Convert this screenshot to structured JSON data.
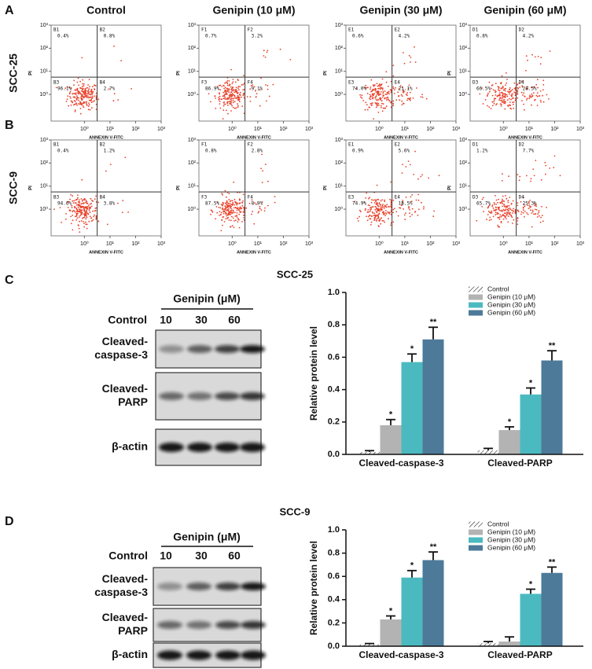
{
  "flow_cytometry": {
    "column_titles": [
      "Control",
      "Genipin (10 μM)",
      "Genipin (30 μM)",
      "Genipin (60 μM)"
    ],
    "x_label": "ANNEXIN V-FITC",
    "y_label": "PI",
    "log_scale": true,
    "xlim": [
      0.05,
      1000
    ],
    "ylim": [
      0.07,
      1000
    ],
    "xticks": [
      {
        "value": 1,
        "label": "10⁰"
      },
      {
        "value": 10,
        "label": "10¹"
      },
      {
        "value": 100,
        "label": "10²"
      },
      {
        "value": 1000,
        "label": "10³"
      }
    ],
    "yticks": [
      {
        "value": 1,
        "label": "10⁰"
      },
      {
        "value": 10,
        "label": "10¹"
      },
      {
        "value": 100,
        "label": "10²"
      },
      {
        "value": 1000,
        "label": "10³"
      }
    ],
    "dot_color": "#e8412a",
    "rows": [
      {
        "label": "A",
        "cell_line": "SCC-25",
        "plots": [
          {
            "quadrants": [
              "B1",
              "B2",
              "B3",
              "B4"
            ],
            "values": [
              0.4,
              0.8,
              96.1,
              2.7
            ],
            "value_labels": [
              "0.4%",
              "0.8%",
              "96.1%",
              "2.7%"
            ]
          },
          {
            "quadrants": [
              "F1",
              "F2",
              "F3",
              "F4"
            ],
            "values": [
              0.7,
              3.2,
              86.9,
              9.1
            ],
            "value_labels": [
              "0.7%",
              "3.2%",
              "86.9%",
              "9.1%"
            ]
          },
          {
            "quadrants": [
              "E1",
              "E2",
              "E3",
              "E4"
            ],
            "values": [
              0.6,
              4.2,
              74.0,
              21.1
            ],
            "value_labels": [
              "0.6%",
              "4.2%",
              "74.0%",
              "21.1%"
            ]
          },
          {
            "quadrants": [
              "D1",
              "D2",
              "D3",
              "D4"
            ],
            "values": [
              0.8,
              4.2,
              66.5,
              28.5
            ],
            "value_labels": [
              "0.8%",
              "4.2%",
              "66.5%",
              "28.5%"
            ]
          }
        ]
      },
      {
        "label": "B",
        "cell_line": "SCC-9",
        "plots": [
          {
            "quadrants": [
              "B1",
              "B2",
              "B3",
              "B4"
            ],
            "values": [
              0.4,
              1.2,
              94.6,
              3.8
            ],
            "value_labels": [
              "0.4%",
              "1.2%",
              "94.6%",
              "3.8%"
            ]
          },
          {
            "quadrants": [
              "F1",
              "F2",
              "F3",
              "F4"
            ],
            "values": [
              0.8,
              2.8,
              87.5,
              8.9
            ],
            "value_labels": [
              "0.8%",
              "2.8%",
              "87.5%",
              "8.9%"
            ]
          },
          {
            "quadrants": [
              "E1",
              "E2",
              "E3",
              "E4"
            ],
            "values": [
              0.9,
              5.6,
              74.9,
              18.5
            ],
            "value_labels": [
              "0.9%",
              "5.6%",
              "74.9%",
              "18.5%"
            ]
          },
          {
            "quadrants": [
              "D1",
              "D2",
              "D3",
              "D4"
            ],
            "values": [
              1.2,
              7.7,
              65.7,
              25.3
            ],
            "value_labels": [
              "1.2%",
              "7.7%",
              "65.7%",
              "25.3%"
            ]
          }
        ]
      }
    ]
  },
  "blots": [
    {
      "treatment_label": "Genipin (μM)",
      "lanes": [
        "Control",
        "10",
        "30",
        "60"
      ],
      "rows": [
        [
          "Cleaved-",
          "caspase-3"
        ],
        [
          "Cleaved-",
          "PARP"
        ],
        [
          "β-actin"
        ]
      ]
    },
    {
      "treatment_label": "Genipin (μM)",
      "lanes": [
        "Control",
        "10",
        "30",
        "60"
      ],
      "rows": [
        [
          "Cleaved-",
          "caspase-3"
        ],
        [
          "Cleaved-",
          "PARP"
        ],
        [
          "β-actin"
        ]
      ]
    }
  ],
  "chart_data": [
    {
      "type": "bar",
      "panel_label": "C",
      "title": "SCC-25",
      "y_label": "Relative protein level",
      "categories": [
        "Cleaved-caspase-3",
        "Cleaved-PARP"
      ],
      "ylim": [
        0,
        1
      ],
      "yticks": [
        {
          "value": 0,
          "label": "0.0"
        },
        0.2,
        0.4,
        0.6,
        0.8,
        {
          "value": 1,
          "label": "1.0"
        }
      ],
      "legend": "upper right",
      "series": [
        {
          "name": "Control",
          "color": "#ffffff",
          "pattern": "hatch",
          "values": [
            0.015,
            0.025
          ],
          "errors": [
            0.008,
            0.012
          ],
          "significance": [
            null,
            null
          ]
        },
        {
          "name": "Genipin (10 μM)",
          "color": "#b3b3b3",
          "values": [
            0.18,
            0.15
          ],
          "errors": [
            0.035,
            0.02
          ],
          "significance": [
            "*",
            "*"
          ]
        },
        {
          "name": "Genipin (30 μM)",
          "color": "#4bbac0",
          "values": [
            0.57,
            0.37
          ],
          "errors": [
            0.05,
            0.04
          ],
          "significance": [
            "*",
            "*"
          ]
        },
        {
          "name": "Genipin (60 μM)",
          "color": "#4e7a99",
          "values": [
            0.71,
            0.58
          ],
          "errors": [
            0.075,
            0.06
          ],
          "significance": [
            "**",
            "**"
          ]
        }
      ]
    },
    {
      "type": "bar",
      "panel_label": "D",
      "title": "SCC-9",
      "y_label": "Relative protein level",
      "categories": [
        "Cleaved-caspase-3",
        "Cleaved-PARP"
      ],
      "ylim": [
        0,
        1
      ],
      "yticks": [
        {
          "value": 0,
          "label": "0.0"
        },
        0.2,
        0.4,
        0.6,
        0.8,
        {
          "value": 1,
          "label": "1.0"
        }
      ],
      "legend": "upper right",
      "series": [
        {
          "name": "Control",
          "color": "#ffffff",
          "pattern": "hatch",
          "values": [
            0.015,
            0.025
          ],
          "errors": [
            0.008,
            0.015
          ],
          "significance": [
            null,
            null
          ]
        },
        {
          "name": "Genipin (10 μM)",
          "color": "#b3b3b3",
          "values": [
            0.23,
            0.04
          ],
          "errors": [
            0.03,
            0.04
          ],
          "significance": [
            "*",
            null
          ]
        },
        {
          "name": "Genipin (30 μM)",
          "color": "#4bbac0",
          "values": [
            0.59,
            0.45
          ],
          "errors": [
            0.06,
            0.04
          ],
          "significance": [
            "*",
            "*"
          ]
        },
        {
          "name": "Genipin (60 μM)",
          "color": "#4e7a99",
          "values": [
            0.74,
            0.63
          ],
          "errors": [
            0.07,
            0.05
          ],
          "significance": [
            "**",
            "**"
          ]
        }
      ]
    }
  ]
}
